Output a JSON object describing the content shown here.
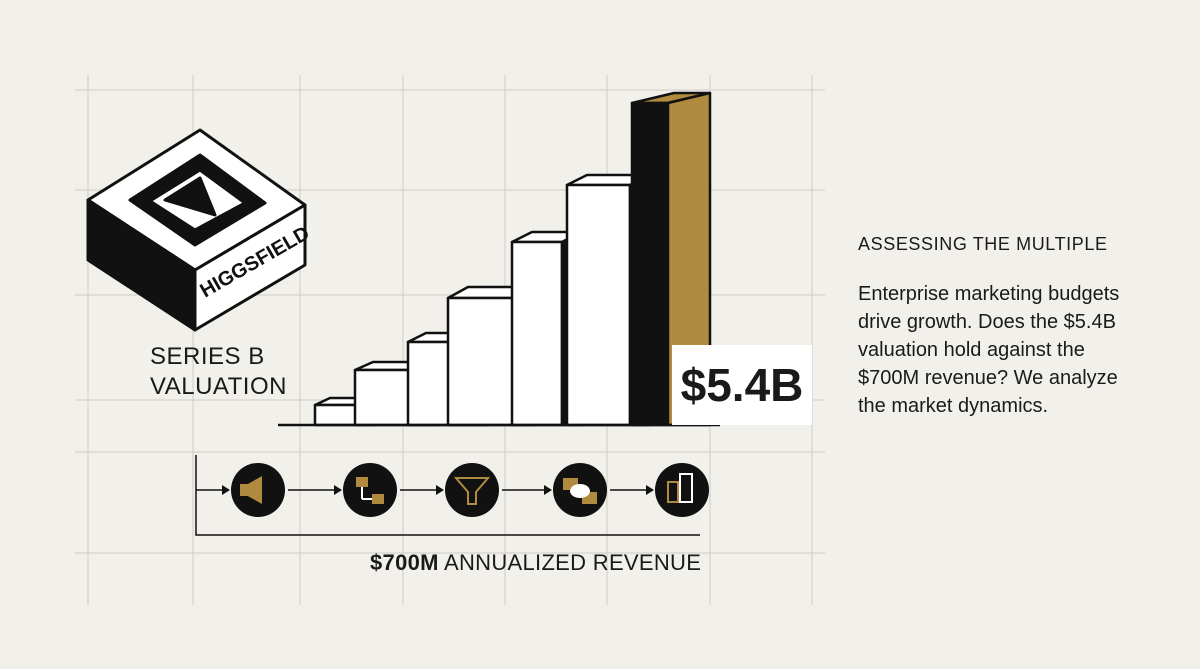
{
  "logo": "HIGGSFIELD",
  "label": {
    "line1": "SERIES B",
    "line2": "VALUATION"
  },
  "valuation": "$5.4B",
  "revenue": {
    "amount": "$700M",
    "text": "ANNUALIZED REVENUE"
  },
  "sidebar": {
    "heading": "ASSESSING THE MULTIPLE",
    "body": "Enterprise marketing budgets drive growth. Does the $5.4B valuation hold against the $700M revenue? We analyze the market dynamics."
  }
}
